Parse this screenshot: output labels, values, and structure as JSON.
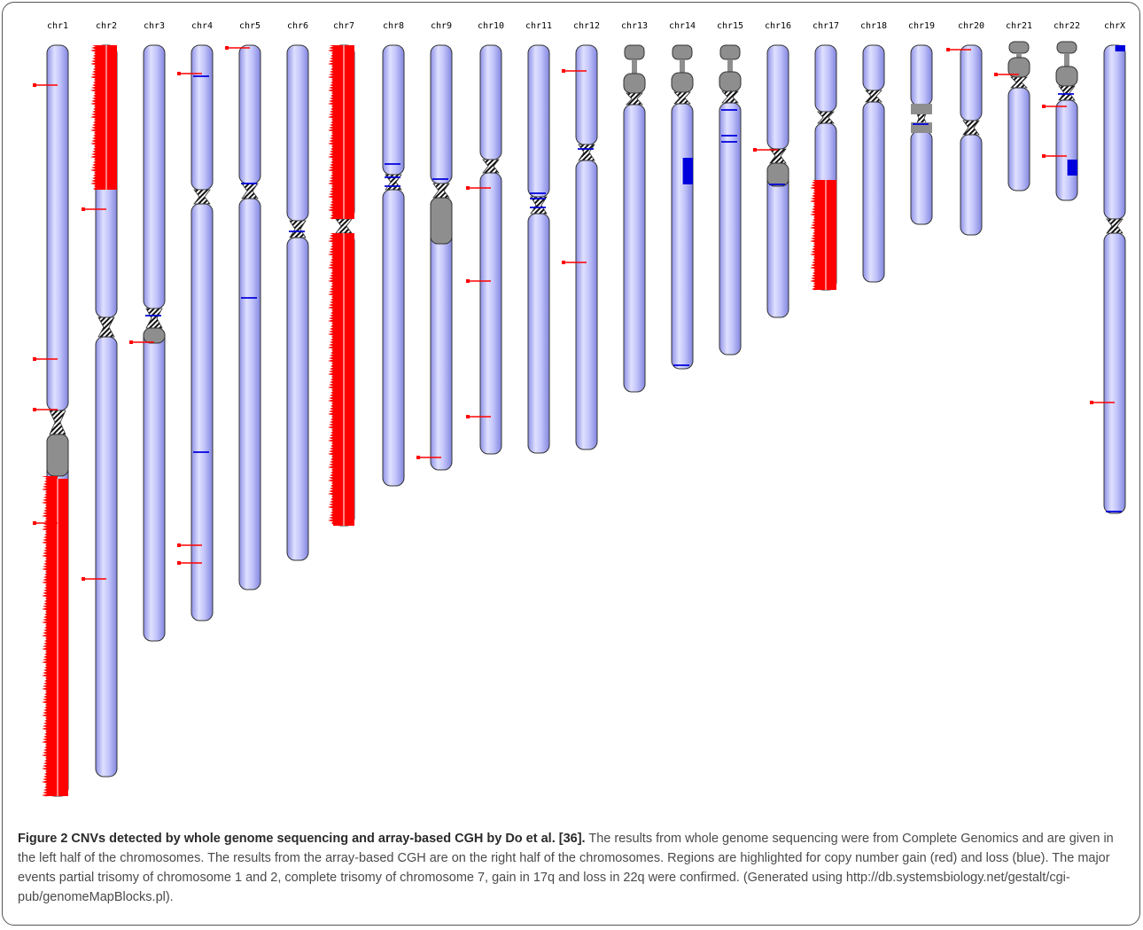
{
  "chromosomes": [
    {
      "id": "chr1",
      "label": "chr1"
    },
    {
      "id": "chr2",
      "label": "chr2"
    },
    {
      "id": "chr3",
      "label": "chr3"
    },
    {
      "id": "chr4",
      "label": "chr4"
    },
    {
      "id": "chr5",
      "label": "chr5"
    },
    {
      "id": "chr6",
      "label": "chr6"
    },
    {
      "id": "chr7",
      "label": "chr7"
    },
    {
      "id": "chr8",
      "label": "chr8"
    },
    {
      "id": "chr9",
      "label": "chr9"
    },
    {
      "id": "chr10",
      "label": "chr10"
    },
    {
      "id": "chr11",
      "label": "chr11"
    },
    {
      "id": "chr12",
      "label": "chr12"
    },
    {
      "id": "chr13",
      "label": "chr13"
    },
    {
      "id": "chr14",
      "label": "chr14"
    },
    {
      "id": "chr15",
      "label": "chr15"
    },
    {
      "id": "chr16",
      "label": "chr16"
    },
    {
      "id": "chr17",
      "label": "chr17"
    },
    {
      "id": "chr18",
      "label": "chr18"
    },
    {
      "id": "chr19",
      "label": "chr19"
    },
    {
      "id": "chr20",
      "label": "chr20"
    },
    {
      "id": "chr21",
      "label": "chr21"
    },
    {
      "id": "chr22",
      "label": "chr22"
    },
    {
      "id": "chrX",
      "label": "chrX"
    }
  ],
  "colors": {
    "chromosome": "#b4b7f8",
    "gain": "#ff0000",
    "loss": "#0000dd",
    "heterochromatin": "#8e8e8e"
  },
  "caption": {
    "title": "Figure 2 CNVs detected by whole genome sequencing and array-based CGH by Do et al. [36].",
    "body": "The results from whole genome sequencing were from Complete Genomics and are given in the left half of the chromosomes. The results from the array-based CGH are on the right half of the chromosomes. Regions are highlighted for copy number gain (red) and loss (blue). The major events partial trisomy of chromosome 1 and 2, complete trisomy of chromosome 7, gain in 17q and loss in 22q were confirmed. (Generated using http://db.systemsbiology.net/gestalt/cgi-pub/genomeMapBlocks.pl)."
  }
}
